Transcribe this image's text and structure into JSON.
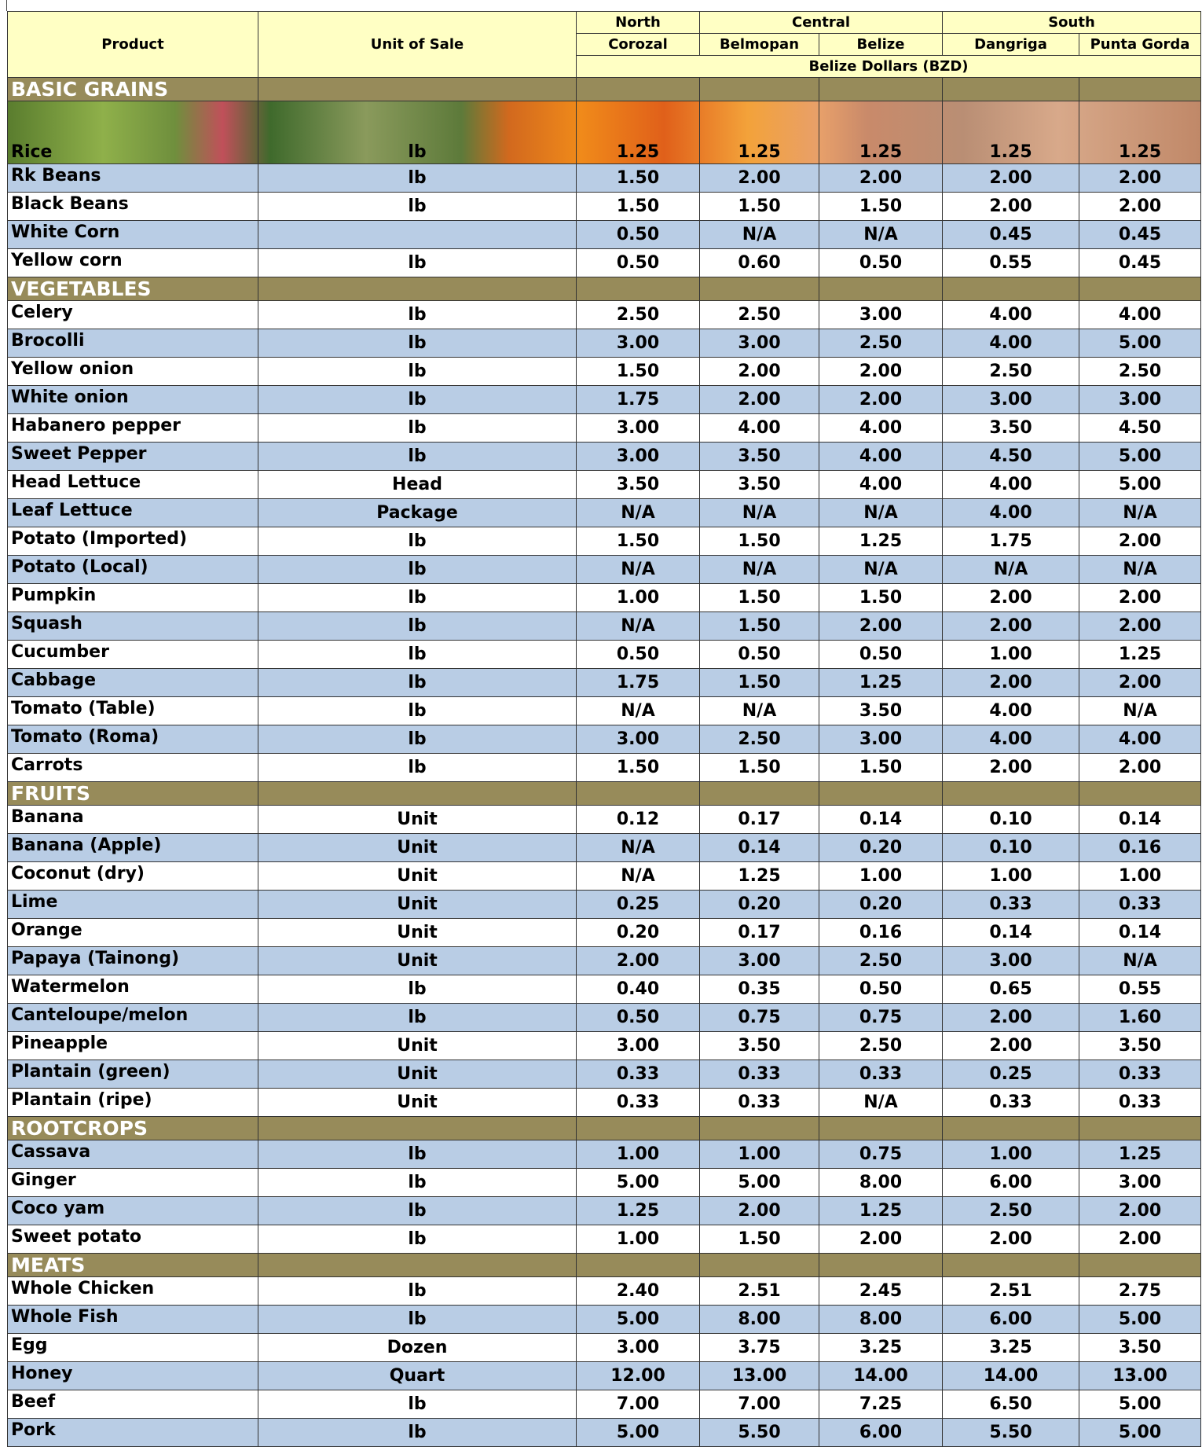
{
  "header": {
    "product": "Product",
    "unit": "Unit of Sale",
    "regions": [
      {
        "name": "North",
        "markets": [
          "Corozal"
        ]
      },
      {
        "name": "Central",
        "markets": [
          "Belmopan",
          "Belize"
        ]
      },
      {
        "name": "South",
        "markets": [
          "Dangriga",
          "Punta Gorda"
        ]
      }
    ],
    "currency": "Belize Dollars (BZD)"
  },
  "sections": [
    {
      "name": "BASIC GRAINS",
      "rows": [
        {
          "product": "Rice",
          "unit": "lb",
          "prices": [
            "1.25",
            "1.25",
            "1.25",
            "1.25",
            "1.25"
          ]
        },
        {
          "product": "Rk Beans",
          "unit": "lb",
          "prices": [
            "1.50",
            "2.00",
            "2.00",
            "2.00",
            "2.00"
          ]
        },
        {
          "product": "Black Beans",
          "unit": "lb",
          "prices": [
            "1.50",
            "1.50",
            "1.50",
            "2.00",
            "2.00"
          ]
        },
        {
          "product": "White Corn",
          "prices": [
            "0.50",
            "N/A",
            "N/A",
            "0.45",
            "0.45"
          ]
        },
        {
          "product": "Yellow corn",
          "unit": "lb",
          "prices": [
            "0.50",
            "0.60",
            "0.50",
            "0.55",
            "0.45"
          ]
        }
      ]
    },
    {
      "name": "VEGETABLES",
      "rows": [
        {
          "product": "Celery",
          "unit": "lb",
          "prices": [
            "2.50",
            "2.50",
            "3.00",
            "4.00",
            "4.00"
          ]
        },
        {
          "product": "Brocolli",
          "unit": "lb",
          "prices": [
            "3.00",
            "3.00",
            "2.50",
            "4.00",
            "5.00"
          ]
        },
        {
          "product": "Yellow onion",
          "unit": "lb",
          "prices": [
            "1.50",
            "2.00",
            "2.00",
            "2.50",
            "2.50"
          ]
        },
        {
          "product": "White onion",
          "unit": "lb",
          "prices": [
            "1.75",
            "2.00",
            "2.00",
            "3.00",
            "3.00"
          ]
        },
        {
          "product": "Habanero pepper",
          "unit": "lb",
          "prices": [
            "3.00",
            "4.00",
            "4.00",
            "3.50",
            "4.50"
          ]
        },
        {
          "product": "Sweet Pepper",
          "unit": "lb",
          "prices": [
            "3.00",
            "3.50",
            "4.00",
            "4.50",
            "5.00"
          ]
        },
        {
          "product": "Head Lettuce",
          "unit": "Head",
          "prices": [
            "3.50",
            "3.50",
            "4.00",
            "4.00",
            "5.00"
          ]
        },
        {
          "product": "Leaf Lettuce",
          "unit": "Package",
          "prices": [
            "N/A",
            "N/A",
            "N/A",
            "4.00",
            "N/A"
          ]
        },
        {
          "product": "Potato (Imported)",
          "unit": "lb",
          "prices": [
            "1.50",
            "1.50",
            "1.25",
            "1.75",
            "2.00"
          ]
        },
        {
          "product": "Potato (Local)",
          "unit": "lb",
          "prices": [
            "N/A",
            "N/A",
            "N/A",
            "N/A",
            "N/A"
          ]
        },
        {
          "product": "Pumpkin",
          "unit": "lb",
          "prices": [
            "1.00",
            "1.50",
            "1.50",
            "2.00",
            "2.00"
          ]
        },
        {
          "product": "Squash",
          "unit": "lb",
          "prices": [
            "N/A",
            "1.50",
            "2.00",
            "2.00",
            "2.00"
          ]
        },
        {
          "product": "Cucumber",
          "unit": "lb",
          "prices": [
            "0.50",
            "0.50",
            "0.50",
            "1.00",
            "1.25"
          ]
        },
        {
          "product": "Cabbage",
          "unit": "lb",
          "prices": [
            "1.75",
            "1.50",
            "1.25",
            "2.00",
            "2.00"
          ]
        },
        {
          "product": "Tomato (Table)",
          "unit": "lb",
          "prices": [
            "N/A",
            "N/A",
            "3.50",
            "4.00",
            "N/A"
          ]
        },
        {
          "product": "Tomato (Roma)",
          "unit": "lb",
          "prices": [
            "3.00",
            "2.50",
            "3.00",
            "4.00",
            "4.00"
          ]
        },
        {
          "product": "Carrots",
          "unit": "lb",
          "prices": [
            "1.50",
            "1.50",
            "1.50",
            "2.00",
            "2.00"
          ]
        }
      ]
    },
    {
      "name": "FRUITS",
      "rows": [
        {
          "product": "Banana",
          "unit": "Unit",
          "prices": [
            "0.12",
            "0.17",
            "0.14",
            "0.10",
            "0.14"
          ]
        },
        {
          "product": "Banana (Apple)",
          "unit": "Unit",
          "prices": [
            "N/A",
            "0.14",
            "0.20",
            "0.10",
            "0.16"
          ]
        },
        {
          "product": "Coconut (dry)",
          "unit": "Unit",
          "prices": [
            "N/A",
            "1.25",
            "1.00",
            "1.00",
            "1.00"
          ]
        },
        {
          "product": "Lime",
          "unit": "Unit",
          "prices": [
            "0.25",
            "0.20",
            "0.20",
            "0.33",
            "0.33"
          ]
        },
        {
          "product": "Orange",
          "unit": "Unit",
          "prices": [
            "0.20",
            "0.17",
            "0.16",
            "0.14",
            "0.14"
          ]
        },
        {
          "product": "Papaya (Tainong)",
          "unit": "Unit",
          "prices": [
            "2.00",
            "3.00",
            "2.50",
            "3.00",
            "N/A"
          ]
        },
        {
          "product": "Watermelon",
          "unit": "lb",
          "prices": [
            "0.40",
            "0.35",
            "0.50",
            "0.65",
            "0.55"
          ]
        },
        {
          "product": "Canteloupe/melon",
          "unit": "lb",
          "prices": [
            "0.50",
            "0.75",
            "0.75",
            "2.00",
            "1.60"
          ]
        },
        {
          "product": "Pineapple",
          "unit": "Unit",
          "prices": [
            "3.00",
            "3.50",
            "2.50",
            "2.00",
            "3.50"
          ]
        },
        {
          "product": "Plantain (green)",
          "unit": "Unit",
          "prices": [
            "0.33",
            "0.33",
            "0.33",
            "0.25",
            "0.33"
          ]
        },
        {
          "product": "Plantain (ripe)",
          "unit": "Unit",
          "prices": [
            "0.33",
            "0.33",
            "N/A",
            "0.33",
            "0.33"
          ]
        }
      ]
    },
    {
      "name": "ROOTCROPS",
      "rows": [
        {
          "product": "Cassava",
          "unit": "lb",
          "prices": [
            "1.00",
            "1.00",
            "0.75",
            "1.00",
            "1.25"
          ]
        },
        {
          "product": "Ginger",
          "unit": "lb",
          "prices": [
            "5.00",
            "5.00",
            "8.00",
            "6.00",
            "3.00"
          ]
        },
        {
          "product": "Coco yam",
          "unit": "lb",
          "prices": [
            "1.25",
            "2.00",
            "1.25",
            "2.50",
            "2.00"
          ]
        },
        {
          "product": "Sweet potato",
          "unit": "lb",
          "prices": [
            "1.00",
            "1.50",
            "2.00",
            "2.00",
            "2.00"
          ]
        }
      ]
    },
    {
      "name": "MEATS",
      "rows": [
        {
          "product": "Whole Chicken",
          "unit": "lb",
          "prices": [
            "2.40",
            "2.51",
            "2.45",
            "2.51",
            "2.75"
          ]
        },
        {
          "product": "Whole Fish",
          "unit": "lb",
          "prices": [
            "5.00",
            "8.00",
            "8.00",
            "6.00",
            "5.00"
          ]
        },
        {
          "product": "Egg",
          "unit": "Dozen",
          "prices": [
            "3.00",
            "3.75",
            "3.25",
            "3.25",
            "3.50"
          ]
        },
        {
          "product": "Honey",
          "unit": "Quart",
          "prices": [
            "12.00",
            "13.00",
            "14.00",
            "14.00",
            "13.00"
          ]
        },
        {
          "product": "Beef",
          "unit": "lb",
          "prices": [
            "7.00",
            "7.00",
            "7.25",
            "6.50",
            "5.00"
          ]
        },
        {
          "product": "Pork",
          "unit": "lb",
          "prices": [
            "5.00",
            "5.50",
            "6.00",
            "5.50",
            "5.00"
          ]
        }
      ]
    }
  ]
}
